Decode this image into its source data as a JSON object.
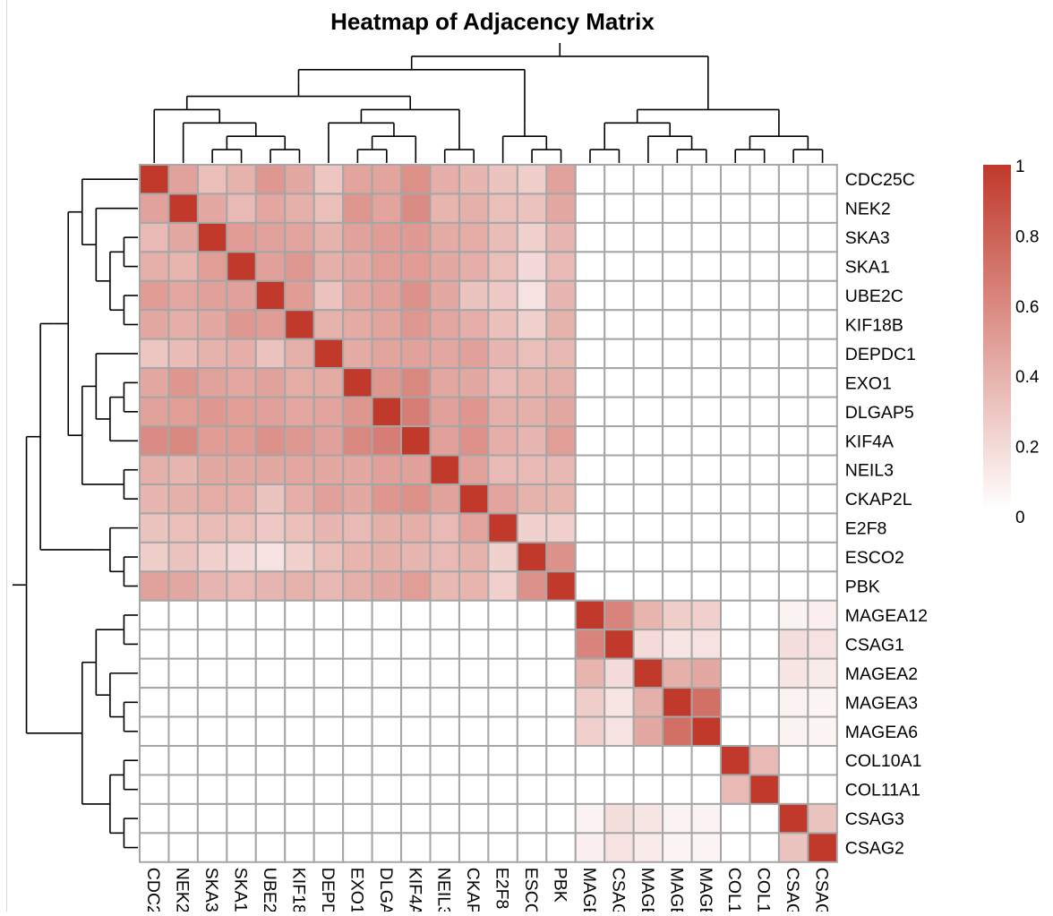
{
  "chart_data": {
    "type": "heatmap",
    "title": "Heatmap of Adjacency Matrix",
    "genes": [
      "CDC25C",
      "NEK2",
      "SKA3",
      "SKA1",
      "UBE2C",
      "KIF18B",
      "DEPDC1",
      "EXO1",
      "DLGAP5",
      "KIF4A",
      "NEIL3",
      "CKAP2L",
      "E2F8",
      "ESCO2",
      "PBK",
      "MAGEA12",
      "CSAG1",
      "MAGEA2",
      "MAGEA3",
      "MAGEA6",
      "COL10A1",
      "COL11A1",
      "CSAG3",
      "CSAG2"
    ],
    "values": [
      [
        1.0,
        0.47,
        0.33,
        0.39,
        0.52,
        0.44,
        0.29,
        0.46,
        0.46,
        0.56,
        0.41,
        0.37,
        0.3,
        0.25,
        0.47
      ],
      [
        0.47,
        1.0,
        0.44,
        0.35,
        0.45,
        0.4,
        0.33,
        0.53,
        0.46,
        0.58,
        0.38,
        0.4,
        0.33,
        0.31,
        0.44
      ],
      [
        0.35,
        0.44,
        1.0,
        0.5,
        0.47,
        0.46,
        0.39,
        0.47,
        0.5,
        0.51,
        0.43,
        0.42,
        0.34,
        0.23,
        0.37
      ],
      [
        0.4,
        0.38,
        0.49,
        1.0,
        0.48,
        0.52,
        0.4,
        0.44,
        0.49,
        0.5,
        0.44,
        0.41,
        0.33,
        0.19,
        0.35
      ],
      [
        0.5,
        0.45,
        0.48,
        0.48,
        1.0,
        0.5,
        0.31,
        0.45,
        0.48,
        0.55,
        0.44,
        0.3,
        0.28,
        0.14,
        0.37
      ],
      [
        0.44,
        0.41,
        0.44,
        0.52,
        0.5,
        1.0,
        0.39,
        0.43,
        0.46,
        0.52,
        0.45,
        0.41,
        0.32,
        0.23,
        0.39
      ],
      [
        0.29,
        0.34,
        0.39,
        0.41,
        0.31,
        0.4,
        1.0,
        0.43,
        0.46,
        0.47,
        0.45,
        0.48,
        0.37,
        0.33,
        0.36
      ],
      [
        0.44,
        0.53,
        0.47,
        0.45,
        0.47,
        0.42,
        0.43,
        1.0,
        0.53,
        0.6,
        0.45,
        0.44,
        0.35,
        0.38,
        0.4
      ],
      [
        0.47,
        0.49,
        0.52,
        0.49,
        0.48,
        0.45,
        0.46,
        0.53,
        1.0,
        0.65,
        0.48,
        0.53,
        0.4,
        0.4,
        0.44
      ],
      [
        0.58,
        0.6,
        0.5,
        0.5,
        0.55,
        0.52,
        0.48,
        0.6,
        0.65,
        1.0,
        0.48,
        0.56,
        0.41,
        0.37,
        0.49
      ],
      [
        0.4,
        0.37,
        0.44,
        0.44,
        0.44,
        0.45,
        0.44,
        0.44,
        0.48,
        0.48,
        1.0,
        0.47,
        0.35,
        0.35,
        0.36
      ],
      [
        0.37,
        0.4,
        0.42,
        0.41,
        0.3,
        0.41,
        0.48,
        0.44,
        0.53,
        0.56,
        0.47,
        1.0,
        0.46,
        0.39,
        0.38
      ],
      [
        0.3,
        0.33,
        0.34,
        0.33,
        0.28,
        0.32,
        0.37,
        0.35,
        0.4,
        0.41,
        0.35,
        0.46,
        1.0,
        0.23,
        0.24
      ],
      [
        0.25,
        0.31,
        0.23,
        0.19,
        0.14,
        0.23,
        0.33,
        0.38,
        0.4,
        0.37,
        0.35,
        0.39,
        0.23,
        1.0,
        0.55
      ],
      [
        0.47,
        0.44,
        0.37,
        0.35,
        0.37,
        0.39,
        0.36,
        0.4,
        0.44,
        0.49,
        0.36,
        0.38,
        0.24,
        0.55,
        1.0
      ],
      [
        1.0,
        0.62,
        0.38,
        0.25,
        0.24,
        0.0,
        0.0,
        0.06,
        0.08
      ],
      [
        0.62,
        1.0,
        0.18,
        0.13,
        0.14,
        0.0,
        0.0,
        0.16,
        0.14
      ],
      [
        0.38,
        0.18,
        1.0,
        0.4,
        0.44,
        0.0,
        0.0,
        0.13,
        0.1
      ],
      [
        0.25,
        0.13,
        0.4,
        1.0,
        0.72,
        0.0,
        0.0,
        0.06,
        0.05
      ],
      [
        0.24,
        0.14,
        0.44,
        0.72,
        1.0,
        0.0,
        0.0,
        0.06,
        0.05
      ],
      [
        0.0,
        0.0,
        0.0,
        0.0,
        0.0,
        1.0,
        0.35,
        0.0,
        0.0
      ],
      [
        0.0,
        0.0,
        0.0,
        0.0,
        0.0,
        0.35,
        1.0,
        0.0,
        0.0
      ],
      [
        0.06,
        0.16,
        0.13,
        0.06,
        0.06,
        0.0,
        0.0,
        1.0,
        0.3
      ],
      [
        0.08,
        0.14,
        0.1,
        0.05,
        0.05,
        0.0,
        0.0,
        0.3,
        1.0
      ]
    ],
    "zlim": [
      0,
      1
    ],
    "legend": {
      "ticks": [
        "1",
        "0.8",
        "0.6",
        "0.4",
        "0.2",
        "0"
      ],
      "position": "right"
    },
    "colors": {
      "low": "#ffffff",
      "high": "#c0392b",
      "border": "#a6a6a6"
    },
    "row_dendrogram": "left",
    "column_dendrogram": "top"
  }
}
